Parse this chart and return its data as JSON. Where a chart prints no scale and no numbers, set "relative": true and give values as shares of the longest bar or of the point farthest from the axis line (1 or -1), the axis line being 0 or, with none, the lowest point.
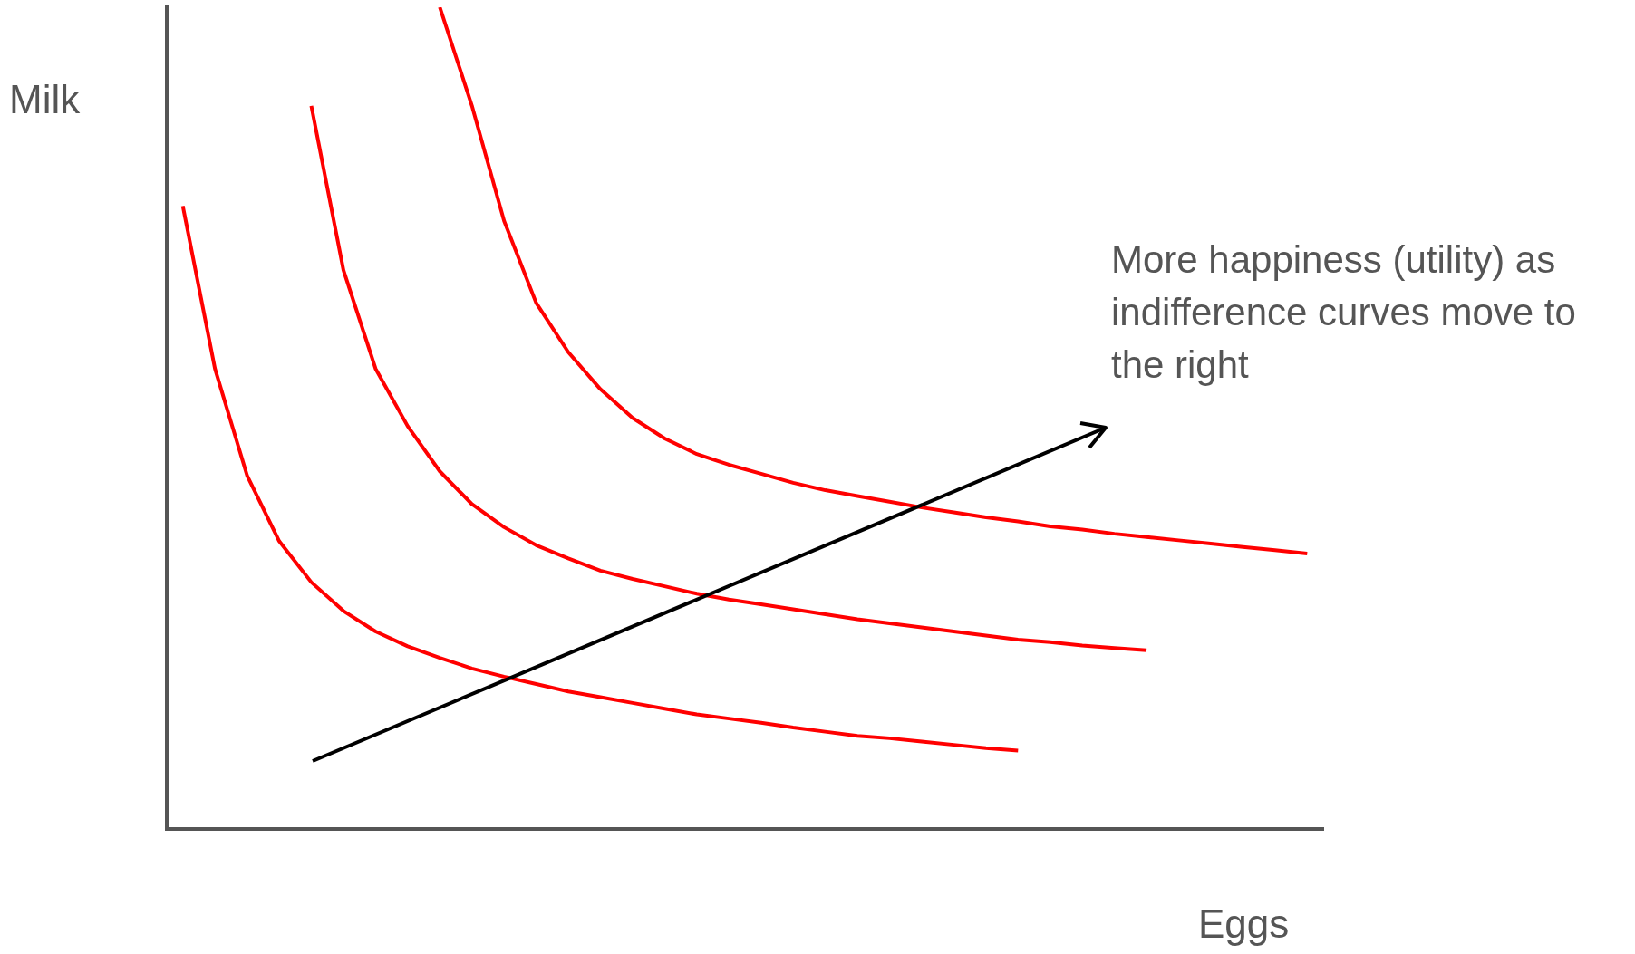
{
  "chart_data": {
    "type": "line",
    "relative": true,
    "xlabel": "Eggs",
    "ylabel": "Milk",
    "legend": false,
    "grid": false,
    "marker": "none",
    "line_style": "solid",
    "annotations": [
      "More happiness (utility) as indifference curves move to the right"
    ],
    "categories": [
      null,
      null,
      null,
      null,
      null,
      null,
      null,
      null,
      null,
      null,
      null,
      null,
      null,
      null,
      null,
      null,
      null,
      null,
      null,
      null,
      null,
      null,
      null,
      null,
      null,
      null,
      null,
      null,
      null,
      null,
      null,
      null,
      null,
      null,
      null,
      null
    ],
    "series": [
      {
        "color": "#ff0000",
        "values": [
          0.758,
          0.56,
          0.43,
          0.35,
          0.3,
          0.265,
          0.24,
          0.222,
          0.208,
          0.195,
          0.185,
          0.176,
          0.167,
          0.16,
          0.153,
          0.146,
          0.139,
          0.134,
          0.129,
          0.123,
          0.118,
          0.113,
          0.11,
          0.106,
          0.102,
          0.098,
          0.095,
          null,
          null,
          null,
          null,
          null,
          null,
          null,
          null,
          null
        ]
      },
      {
        "color": "#ff0000",
        "values": [
          null,
          null,
          null,
          null,
          0.88,
          0.68,
          0.56,
          0.49,
          0.435,
          0.395,
          0.367,
          0.345,
          0.329,
          0.314,
          0.304,
          0.295,
          0.286,
          0.279,
          0.273,
          0.267,
          0.261,
          0.255,
          0.25,
          0.245,
          0.24,
          0.235,
          0.23,
          0.227,
          0.223,
          0.22,
          0.217,
          null,
          null,
          null,
          null,
          null
        ]
      },
      {
        "color": "#ff0000",
        "values": [
          null,
          null,
          null,
          null,
          null,
          null,
          null,
          null,
          1.0,
          0.88,
          0.74,
          0.64,
          0.58,
          0.535,
          0.5,
          0.475,
          0.456,
          0.443,
          0.432,
          0.421,
          0.412,
          0.405,
          0.398,
          0.391,
          0.385,
          0.379,
          0.374,
          0.368,
          0.364,
          0.359,
          0.355,
          0.351,
          0.347,
          0.343,
          0.339,
          0.335
        ]
      }
    ]
  }
}
